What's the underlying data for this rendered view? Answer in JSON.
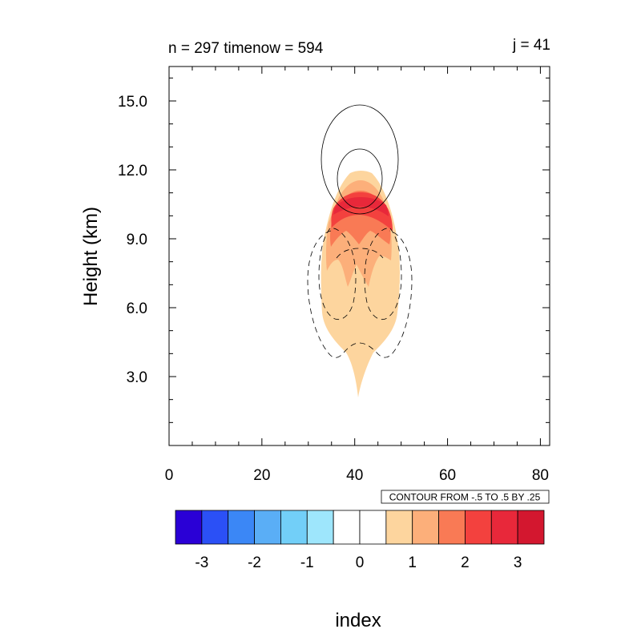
{
  "chart_data": {
    "type": "contour",
    "title_left": "n = 297 timenow = 594",
    "title_right": "j = 41",
    "xlabel": "index",
    "ylabel": "Height (km)",
    "xlim": [
      0,
      82
    ],
    "ylim": [
      0,
      16.5
    ],
    "x_ticks": [
      0,
      20,
      40,
      60,
      80
    ],
    "x_tick_labels": [
      "0",
      "20",
      "40",
      "60",
      "80"
    ],
    "y_ticks": [
      3.0,
      6.0,
      9.0,
      12.0,
      15.0
    ],
    "y_tick_labels": [
      "3.0",
      "6.0",
      "9.0",
      "12.0",
      "15.0"
    ],
    "contour_info": "CONTOUR FROM -.5 TO .5 BY .25",
    "colorbar": {
      "colors": [
        "#2a00d6",
        "#2b50f6",
        "#3b87f6",
        "#5aaef6",
        "#72cff8",
        "#9ee6fc",
        "#ffffff",
        "#ffffff",
        "#fdd59e",
        "#fcaf7a",
        "#f97a55",
        "#f3413e",
        "#e8283a",
        "#d3172f"
      ],
      "tick_values": [
        -3,
        -2,
        -1,
        0,
        1,
        2,
        3
      ],
      "tick_labels": [
        "-3",
        "-2",
        "-1",
        "0",
        "1",
        "2",
        "3"
      ]
    },
    "filled_regions": [
      {
        "level": 1,
        "color": "#fdd59e",
        "shape": "plume",
        "x_center": 41,
        "y_base": 2.3,
        "y_top": 11.4,
        "half_width_max": 8
      },
      {
        "level": 2,
        "color": "#fcaf7a",
        "shape": "upper cap",
        "y_range": [
          7.5,
          11.1
        ]
      },
      {
        "level": 3,
        "color": "#f97a55",
        "shape": "upper cap",
        "y_range": [
          8.8,
          10.9
        ]
      },
      {
        "level": 4,
        "color": "#f3413e",
        "shape": "upper cap",
        "y_range": [
          9.2,
          10.6
        ]
      },
      {
        "level": 5,
        "color": "#e8283a",
        "shape": "upper cap",
        "y_range": [
          9.6,
          10.4
        ]
      }
    ],
    "line_contours": [
      {
        "value": 0.25,
        "style": "solid",
        "x_center": 41.5,
        "y_range": [
          9.9,
          14.5
        ],
        "x_range": [
          33.5,
          49.5
        ]
      },
      {
        "value": 0.5,
        "style": "solid",
        "x_center": 41.5,
        "y_range": [
          10.2,
          12.7
        ],
        "x_range": [
          37,
          46.5
        ]
      },
      {
        "value": -0.25,
        "style": "dashed",
        "x_range": [
          30,
          52
        ],
        "y_range": [
          3.9,
          9.4
        ]
      },
      {
        "value": -0.5,
        "style": "dashed",
        "x_range": [
          33,
          49.5
        ],
        "y_range": [
          5.5,
          9.4
        ]
      }
    ]
  }
}
